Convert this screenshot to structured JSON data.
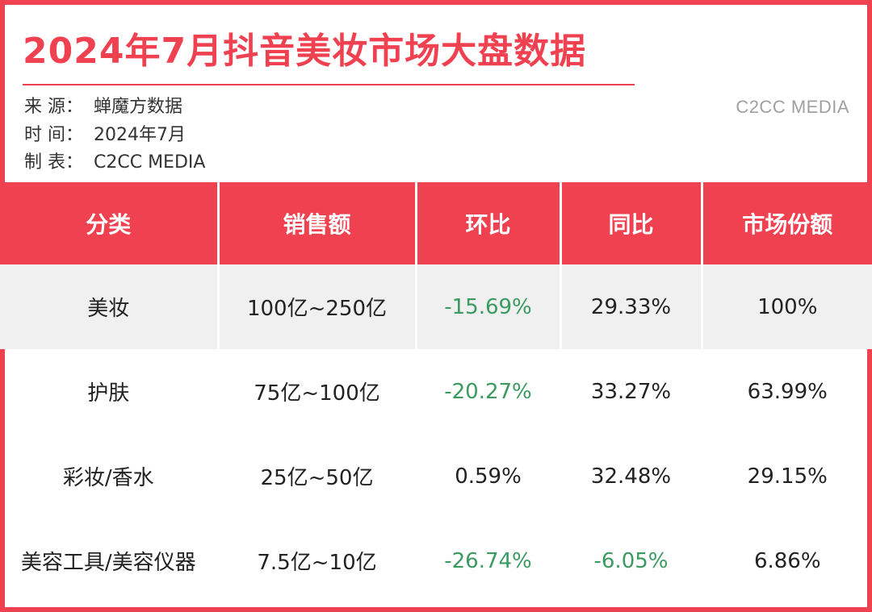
{
  "header": {
    "title": "2024年7月抖音美妆市场大盘数据",
    "brand": "C2CC MEDIA",
    "meta": [
      {
        "label": "来  源：",
        "value": "蝉魔方数据"
      },
      {
        "label": "时  间：",
        "value": "2024年7月"
      },
      {
        "label": "制  表：",
        "value": "C2CC  MEDIA"
      }
    ]
  },
  "colors": {
    "accent": "#ef4150",
    "negative": "#3a9a5f",
    "row_shade": "#f0f0f0"
  },
  "table": {
    "columns": [
      "分类",
      "销售额",
      "环比",
      "同比",
      "市场份额"
    ],
    "rows": [
      {
        "category": "美妆",
        "sales": "100亿~250亿",
        "mom": "-15.69%",
        "yoy": "29.33%",
        "share": "100%"
      },
      {
        "category": "护肤",
        "sales": "75亿~100亿",
        "mom": "-20.27%",
        "yoy": "33.27%",
        "share": "63.99%"
      },
      {
        "category": "彩妆/香水",
        "sales": "25亿~50亿",
        "mom": "0.59%",
        "yoy": "32.48%",
        "share": "29.15%"
      },
      {
        "category": "美容工具/美容仪器",
        "sales": "7.5亿~10亿",
        "mom": "-26.74%",
        "yoy": "-6.05%",
        "share": "6.86%"
      }
    ]
  }
}
